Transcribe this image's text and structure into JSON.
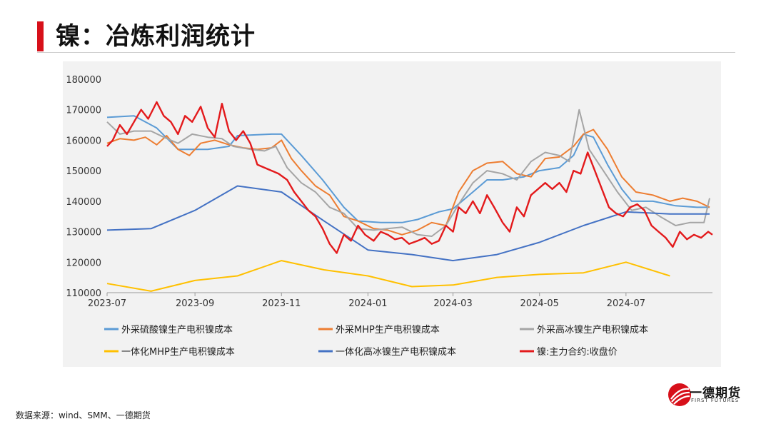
{
  "header": {
    "title": "镍：冶炼利润统计"
  },
  "footer": {
    "source": "数据来源：wind、SMM、一德期货"
  },
  "logo": {
    "name": "一德期货",
    "subtitle": "FIRST FUTURES"
  },
  "colors": {
    "accent": "#d7101a",
    "series": [
      "#5b9bd5",
      "#ed7d31",
      "#a5a5a5",
      "#ffc000",
      "#4472c4",
      "#e31a1c"
    ]
  },
  "chart_data": {
    "type": "line",
    "title": "",
    "xlabel": "",
    "ylabel": "",
    "grid": false,
    "legend_position": "bottom",
    "xlim": [
      "2023-07-01",
      "2024-08-31"
    ],
    "ylim": [
      110000,
      180000
    ],
    "yticks": [
      110000,
      120000,
      130000,
      140000,
      150000,
      160000,
      170000,
      180000
    ],
    "xticks": [
      "2023-07",
      "2023-09",
      "2023-11",
      "2024-01",
      "2024-03",
      "2024-05",
      "2024-07"
    ],
    "series": [
      {
        "name": "外采硫酸镍生产电积镍成本",
        "color": "#5b9bd5",
        "points": [
          [
            "2023-07-01",
            167500
          ],
          [
            "2023-07-20",
            168000
          ],
          [
            "2023-08-05",
            164000
          ],
          [
            "2023-08-20",
            157000
          ],
          [
            "2023-09-10",
            157000
          ],
          [
            "2023-09-25",
            158000
          ],
          [
            "2023-10-01",
            161500
          ],
          [
            "2023-10-25",
            162000
          ],
          [
            "2023-11-01",
            162000
          ],
          [
            "2023-11-15",
            155000
          ],
          [
            "2023-11-30",
            147000
          ],
          [
            "2023-12-15",
            138000
          ],
          [
            "2023-12-25",
            133500
          ],
          [
            "2024-01-10",
            133000
          ],
          [
            "2024-01-25",
            133000
          ],
          [
            "2024-02-05",
            134000
          ],
          [
            "2024-02-20",
            136500
          ],
          [
            "2024-03-01",
            137500
          ],
          [
            "2024-03-15",
            143000
          ],
          [
            "2024-03-25",
            147000
          ],
          [
            "2024-04-05",
            147000
          ],
          [
            "2024-04-20",
            148000
          ],
          [
            "2024-05-01",
            150000
          ],
          [
            "2024-05-15",
            151000
          ],
          [
            "2024-05-25",
            155000
          ],
          [
            "2024-06-01",
            162000
          ],
          [
            "2024-06-08",
            161000
          ],
          [
            "2024-06-18",
            152000
          ],
          [
            "2024-06-28",
            144000
          ],
          [
            "2024-07-05",
            140000
          ],
          [
            "2024-07-20",
            140000
          ],
          [
            "2024-08-05",
            138500
          ],
          [
            "2024-08-20",
            138000
          ],
          [
            "2024-08-29",
            138000
          ]
        ]
      },
      {
        "name": "外采MHP生产电积镍成本",
        "color": "#ed7d31",
        "points": [
          [
            "2023-07-01",
            159000
          ],
          [
            "2023-07-10",
            160500
          ],
          [
            "2023-07-20",
            160000
          ],
          [
            "2023-07-28",
            161000
          ],
          [
            "2023-08-05",
            158500
          ],
          [
            "2023-08-12",
            161500
          ],
          [
            "2023-08-20",
            157000
          ],
          [
            "2023-08-28",
            155000
          ],
          [
            "2023-09-05",
            159000
          ],
          [
            "2023-09-15",
            160000
          ],
          [
            "2023-09-25",
            158500
          ],
          [
            "2023-10-05",
            157500
          ],
          [
            "2023-10-15",
            157000
          ],
          [
            "2023-10-25",
            157500
          ],
          [
            "2023-11-01",
            160000
          ],
          [
            "2023-11-08",
            154000
          ],
          [
            "2023-11-15",
            150000
          ],
          [
            "2023-11-25",
            145000
          ],
          [
            "2023-12-05",
            142000
          ],
          [
            "2023-12-15",
            135000
          ],
          [
            "2023-12-25",
            133500
          ],
          [
            "2024-01-05",
            131000
          ],
          [
            "2024-01-15",
            130500
          ],
          [
            "2024-01-25",
            129000
          ],
          [
            "2024-02-05",
            130500
          ],
          [
            "2024-02-15",
            133000
          ],
          [
            "2024-02-25",
            132000
          ],
          [
            "2024-03-05",
            143000
          ],
          [
            "2024-03-15",
            150000
          ],
          [
            "2024-03-25",
            152500
          ],
          [
            "2024-04-05",
            153000
          ],
          [
            "2024-04-15",
            149000
          ],
          [
            "2024-04-25",
            148000
          ],
          [
            "2024-05-05",
            154000
          ],
          [
            "2024-05-15",
            154500
          ],
          [
            "2024-05-25",
            158000
          ],
          [
            "2024-06-01",
            162000
          ],
          [
            "2024-06-08",
            163500
          ],
          [
            "2024-06-18",
            157000
          ],
          [
            "2024-06-28",
            148000
          ],
          [
            "2024-07-08",
            143000
          ],
          [
            "2024-07-20",
            142000
          ],
          [
            "2024-08-01",
            140000
          ],
          [
            "2024-08-10",
            141000
          ],
          [
            "2024-08-20",
            140000
          ],
          [
            "2024-08-29",
            138000
          ]
        ]
      },
      {
        "name": "外采高冰镍生产电积镍成本",
        "color": "#a5a5a5",
        "points": [
          [
            "2023-07-01",
            166000
          ],
          [
            "2023-07-10",
            162000
          ],
          [
            "2023-07-20",
            163000
          ],
          [
            "2023-08-01",
            163000
          ],
          [
            "2023-08-10",
            161000
          ],
          [
            "2023-08-20",
            159000
          ],
          [
            "2023-08-30",
            162000
          ],
          [
            "2023-09-10",
            161000
          ],
          [
            "2023-09-20",
            160500
          ],
          [
            "2023-09-28",
            158000
          ],
          [
            "2023-10-10",
            157000
          ],
          [
            "2023-10-20",
            156500
          ],
          [
            "2023-10-28",
            158000
          ],
          [
            "2023-11-05",
            151000
          ],
          [
            "2023-11-15",
            146000
          ],
          [
            "2023-11-25",
            143000
          ],
          [
            "2023-12-05",
            138000
          ],
          [
            "2023-12-15",
            136000
          ],
          [
            "2023-12-25",
            131000
          ],
          [
            "2024-01-05",
            130500
          ],
          [
            "2024-01-15",
            131000
          ],
          [
            "2024-01-25",
            131500
          ],
          [
            "2024-02-05",
            129000
          ],
          [
            "2024-02-15",
            128500
          ],
          [
            "2024-02-25",
            132000
          ],
          [
            "2024-03-05",
            139000
          ],
          [
            "2024-03-15",
            146000
          ],
          [
            "2024-03-25",
            150000
          ],
          [
            "2024-04-05",
            149000
          ],
          [
            "2024-04-15",
            147000
          ],
          [
            "2024-04-25",
            153000
          ],
          [
            "2024-05-05",
            156000
          ],
          [
            "2024-05-15",
            155000
          ],
          [
            "2024-05-22",
            153000
          ],
          [
            "2024-05-29",
            170000
          ],
          [
            "2024-06-05",
            157000
          ],
          [
            "2024-06-15",
            150000
          ],
          [
            "2024-06-25",
            143000
          ],
          [
            "2024-07-05",
            137000
          ],
          [
            "2024-07-15",
            138000
          ],
          [
            "2024-07-25",
            135000
          ],
          [
            "2024-08-05",
            132000
          ],
          [
            "2024-08-15",
            133000
          ],
          [
            "2024-08-25",
            133000
          ],
          [
            "2024-08-29",
            141000
          ]
        ]
      },
      {
        "name": "一体化MHP生产电积镍成本",
        "color": "#ffc000",
        "points": [
          [
            "2023-07-01",
            113000
          ],
          [
            "2023-08-01",
            110500
          ],
          [
            "2023-09-01",
            114000
          ],
          [
            "2023-10-01",
            115500
          ],
          [
            "2023-11-01",
            120500
          ],
          [
            "2023-12-01",
            117500
          ],
          [
            "2024-01-01",
            115500
          ],
          [
            "2024-02-01",
            112000
          ],
          [
            "2024-03-01",
            112500
          ],
          [
            "2024-04-01",
            115000
          ],
          [
            "2024-05-01",
            116000
          ],
          [
            "2024-06-01",
            116500
          ],
          [
            "2024-07-01",
            120000
          ],
          [
            "2024-08-01",
            115500
          ]
        ]
      },
      {
        "name": "一体化高冰镍生产电积镍成本",
        "color": "#4472c4",
        "points": [
          [
            "2023-07-01",
            130500
          ],
          [
            "2023-08-01",
            131000
          ],
          [
            "2023-09-01",
            137000
          ],
          [
            "2023-10-01",
            145000
          ],
          [
            "2023-11-01",
            143000
          ],
          [
            "2023-12-01",
            133500
          ],
          [
            "2024-01-01",
            124000
          ],
          [
            "2024-02-01",
            122500
          ],
          [
            "2024-03-01",
            120500
          ],
          [
            "2024-04-01",
            122500
          ],
          [
            "2024-05-01",
            126500
          ],
          [
            "2024-06-01",
            132000
          ],
          [
            "2024-07-01",
            136500
          ],
          [
            "2024-08-01",
            135800
          ],
          [
            "2024-08-29",
            135800
          ]
        ]
      },
      {
        "name": "镍:主力合约:收盘价",
        "color": "#e31a1c",
        "points": [
          [
            "2023-07-01",
            158000
          ],
          [
            "2023-07-05",
            160000
          ],
          [
            "2023-07-10",
            165000
          ],
          [
            "2023-07-15",
            162000
          ],
          [
            "2023-07-20",
            166000
          ],
          [
            "2023-07-25",
            170000
          ],
          [
            "2023-07-30",
            167000
          ],
          [
            "2023-08-05",
            172500
          ],
          [
            "2023-08-10",
            168000
          ],
          [
            "2023-08-15",
            166000
          ],
          [
            "2023-08-20",
            162000
          ],
          [
            "2023-08-25",
            168000
          ],
          [
            "2023-08-30",
            166000
          ],
          [
            "2023-09-05",
            171000
          ],
          [
            "2023-09-10",
            164000
          ],
          [
            "2023-09-15",
            161000
          ],
          [
            "2023-09-20",
            172000
          ],
          [
            "2023-09-25",
            163000
          ],
          [
            "2023-09-30",
            160000
          ],
          [
            "2023-10-05",
            163000
          ],
          [
            "2023-10-10",
            159000
          ],
          [
            "2023-10-15",
            152000
          ],
          [
            "2023-10-20",
            151000
          ],
          [
            "2023-10-25",
            150000
          ],
          [
            "2023-10-30",
            149000
          ],
          [
            "2023-11-05",
            147000
          ],
          [
            "2023-11-10",
            143000
          ],
          [
            "2023-11-15",
            140000
          ],
          [
            "2023-11-20",
            137000
          ],
          [
            "2023-11-25",
            135000
          ],
          [
            "2023-11-30",
            131000
          ],
          [
            "2023-12-05",
            126000
          ],
          [
            "2023-12-10",
            123000
          ],
          [
            "2023-12-15",
            129000
          ],
          [
            "2023-12-20",
            127000
          ],
          [
            "2023-12-25",
            132000
          ],
          [
            "2023-12-30",
            129000
          ],
          [
            "2024-01-05",
            127000
          ],
          [
            "2024-01-10",
            130000
          ],
          [
            "2024-01-15",
            129000
          ],
          [
            "2024-01-20",
            127500
          ],
          [
            "2024-01-25",
            128000
          ],
          [
            "2024-01-30",
            126000
          ],
          [
            "2024-02-05",
            127000
          ],
          [
            "2024-02-10",
            128000
          ],
          [
            "2024-02-15",
            126000
          ],
          [
            "2024-02-20",
            127000
          ],
          [
            "2024-02-25",
            132000
          ],
          [
            "2024-03-01",
            130000
          ],
          [
            "2024-03-05",
            138000
          ],
          [
            "2024-03-10",
            136000
          ],
          [
            "2024-03-15",
            140000
          ],
          [
            "2024-03-20",
            136000
          ],
          [
            "2024-03-25",
            142000
          ],
          [
            "2024-03-30",
            138000
          ],
          [
            "2024-04-05",
            133000
          ],
          [
            "2024-04-10",
            130000
          ],
          [
            "2024-04-15",
            138000
          ],
          [
            "2024-04-20",
            135000
          ],
          [
            "2024-04-25",
            142000
          ],
          [
            "2024-04-30",
            144000
          ],
          [
            "2024-05-05",
            146000
          ],
          [
            "2024-05-10",
            144000
          ],
          [
            "2024-05-15",
            146000
          ],
          [
            "2024-05-20",
            143000
          ],
          [
            "2024-05-25",
            150000
          ],
          [
            "2024-05-30",
            149000
          ],
          [
            "2024-06-04",
            156000
          ],
          [
            "2024-06-09",
            150000
          ],
          [
            "2024-06-14",
            144000
          ],
          [
            "2024-06-19",
            138000
          ],
          [
            "2024-06-24",
            136000
          ],
          [
            "2024-06-29",
            135000
          ],
          [
            "2024-07-04",
            138000
          ],
          [
            "2024-07-09",
            139000
          ],
          [
            "2024-07-14",
            137000
          ],
          [
            "2024-07-19",
            132000
          ],
          [
            "2024-07-24",
            130000
          ],
          [
            "2024-07-29",
            128000
          ],
          [
            "2024-08-03",
            125000
          ],
          [
            "2024-08-08",
            130000
          ],
          [
            "2024-08-13",
            127500
          ],
          [
            "2024-08-18",
            129000
          ],
          [
            "2024-08-23",
            128000
          ],
          [
            "2024-08-28",
            130000
          ],
          [
            "2024-08-31",
            129000
          ]
        ]
      }
    ]
  }
}
